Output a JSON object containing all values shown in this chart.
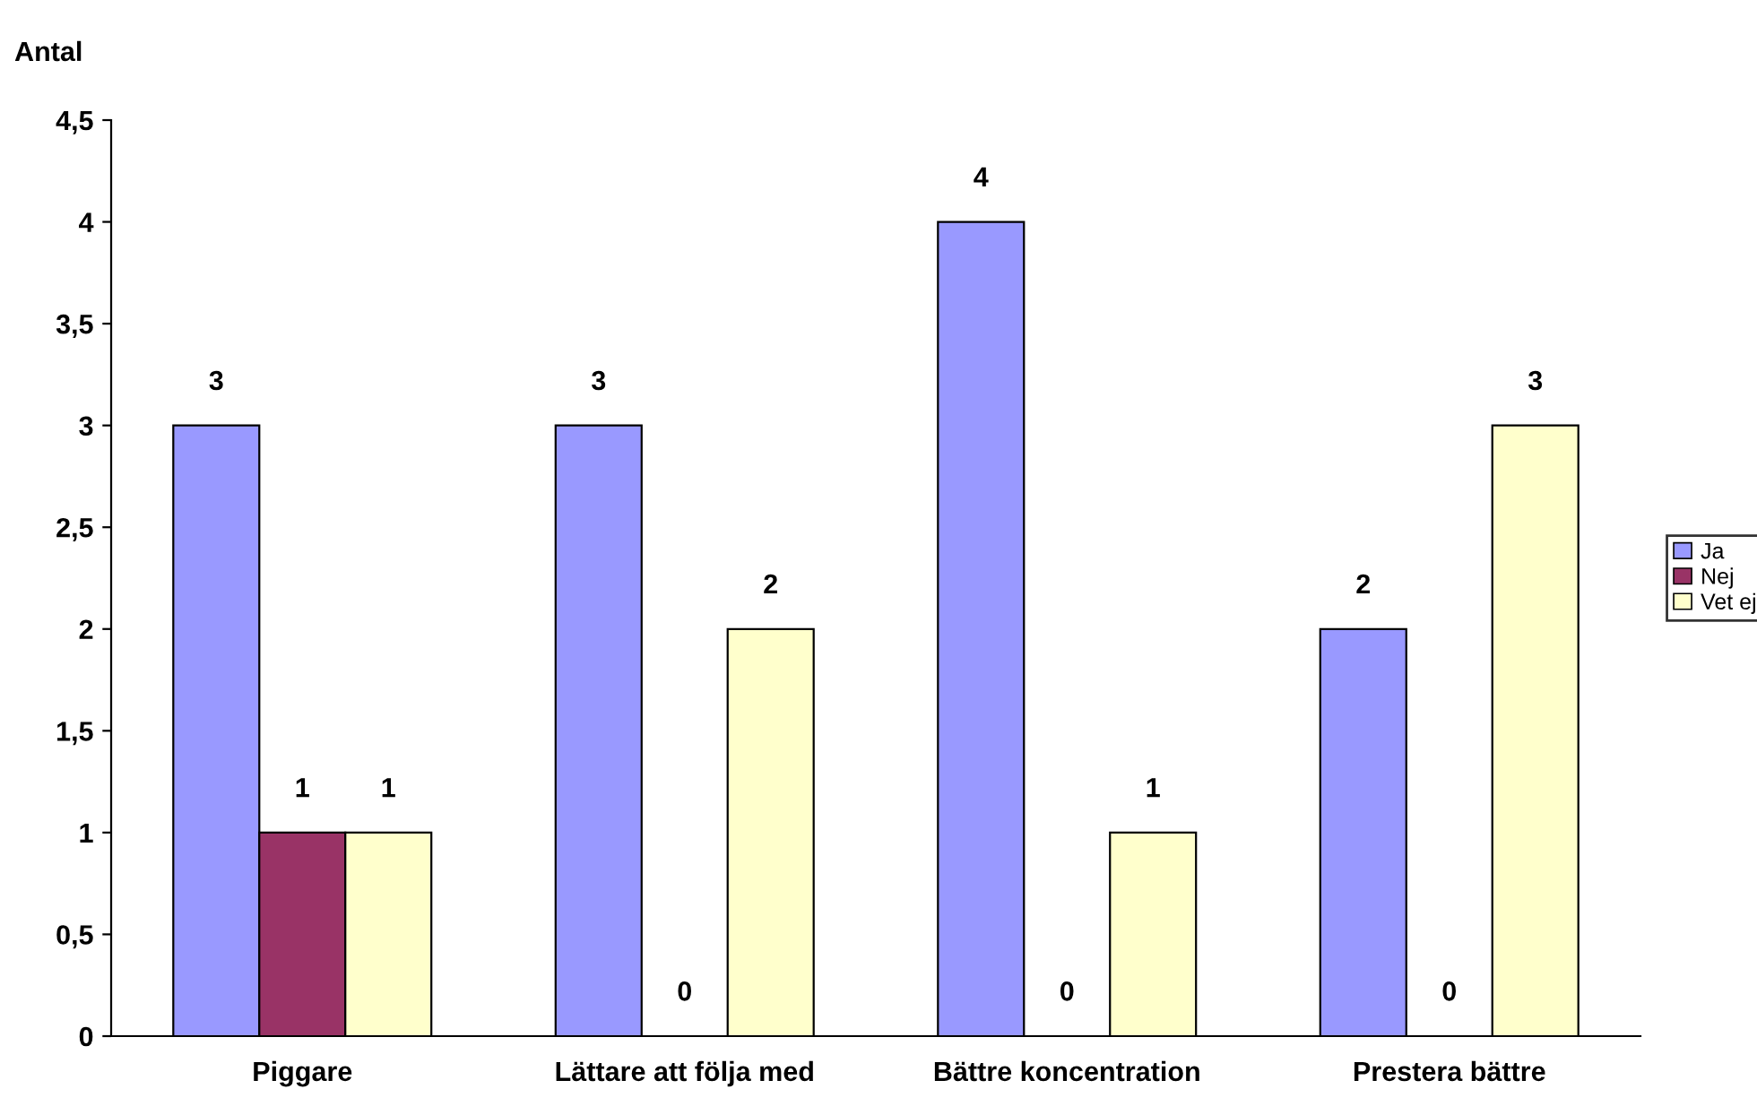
{
  "chart_data": {
    "type": "bar",
    "ylabel": "Antal",
    "categories": [
      "Piggare",
      "Lättare att följa med",
      "Bättre koncentration",
      "Prestera bättre"
    ],
    "series": [
      {
        "name": "Ja",
        "color": "#9999ff",
        "values": [
          3,
          3,
          4,
          2
        ]
      },
      {
        "name": "Nej",
        "color": "#993366",
        "values": [
          1,
          0,
          0,
          0
        ]
      },
      {
        "name": "Vet ej",
        "color": "#ffffcc",
        "values": [
          1,
          2,
          1,
          3
        ]
      }
    ],
    "ylim": [
      0,
      4.5
    ],
    "yticks": [
      0,
      {
        "value": 0.5,
        "label": "0,5"
      },
      1,
      {
        "value": 1.5,
        "label": "1,5"
      },
      2,
      {
        "value": 2.5,
        "label": "2,5"
      },
      3,
      {
        "value": 3.5,
        "label": "3,5"
      },
      4,
      {
        "value": 4.5,
        "label": "4,5"
      }
    ],
    "data_labels": true,
    "grid": false,
    "legend": "right"
  }
}
